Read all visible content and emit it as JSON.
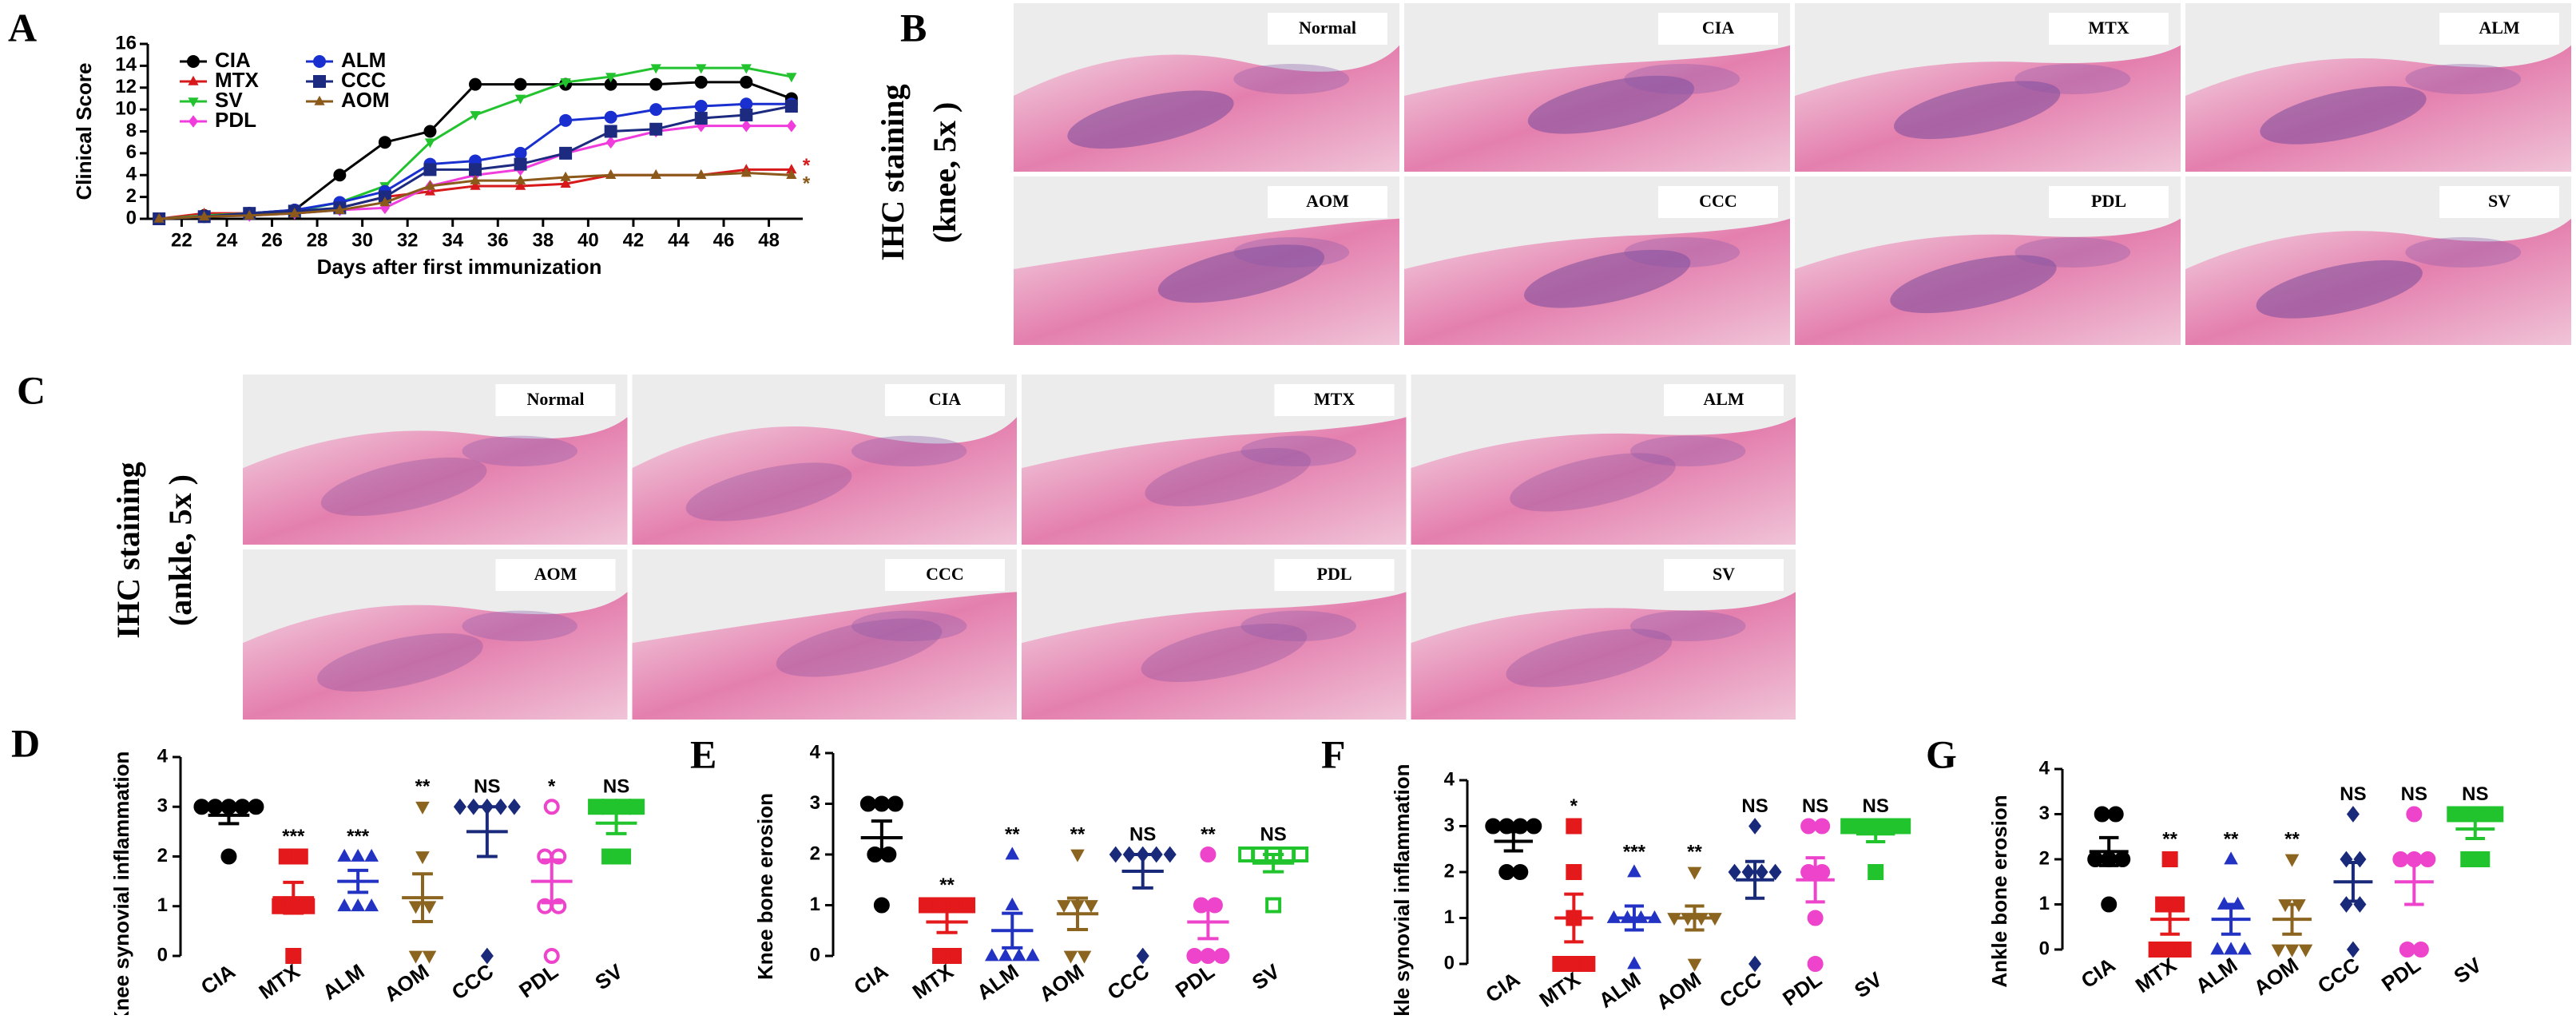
{
  "histology": [
    {
      "panel": "B",
      "title": "IHC staining",
      "subtitle": "(knee, 5x )",
      "images": [
        "Normal",
        "CIA",
        "MTX",
        "ALM",
        "AOM",
        "CCC",
        "PDL",
        "SV"
      ]
    },
    {
      "panel": "C",
      "title": "IHC staining",
      "subtitle": "(ankle, 5x )",
      "images": [
        "Normal",
        "CIA",
        "MTX",
        "ALM",
        "AOM",
        "CCC",
        "PDL",
        "SV"
      ]
    }
  ],
  "chart_data": [
    {
      "type": "line",
      "panel": "A",
      "y_label": "Clinical Score",
      "x_label": "Days after first immunization",
      "x": [
        21,
        23,
        25,
        27,
        29,
        31,
        33,
        35,
        37,
        39,
        41,
        43,
        45,
        47,
        49
      ],
      "xlim": [
        20.5,
        49.5
      ],
      "xticks": [
        22,
        24,
        26,
        28,
        30,
        32,
        34,
        36,
        38,
        40,
        42,
        44,
        46,
        48
      ],
      "ylim": [
        0,
        16
      ],
      "yticks": [
        0,
        2,
        4,
        6,
        8,
        10,
        12,
        14,
        16
      ],
      "series": [
        {
          "name": "CIA",
          "color": "#000000",
          "marker": "circle",
          "values": [
            0,
            0.3,
            0.5,
            0.8,
            4,
            7,
            8,
            12.3,
            12.3,
            12.3,
            12.3,
            12.3,
            12.5,
            12.5,
            11
          ]
        },
        {
          "name": "MTX",
          "color": "#d7191c",
          "marker": "triangle",
          "end_mark": "*",
          "values": [
            0,
            0.5,
            0.5,
            0.5,
            1,
            2,
            2.5,
            3,
            3,
            3.2,
            4,
            4,
            4,
            4.5,
            4.5
          ]
        },
        {
          "name": "SV",
          "color": "#22c32e",
          "marker": "triangle-down",
          "values": [
            0,
            0.3,
            0.5,
            0.7,
            1.5,
            3,
            7,
            9.5,
            11,
            12.5,
            13,
            13.8,
            13.8,
            13.8,
            13
          ]
        },
        {
          "name": "PDL",
          "color": "#f03cdc",
          "marker": "diamond",
          "values": [
            0,
            0.2,
            0.3,
            0.5,
            0.8,
            1,
            3,
            4,
            4.5,
            6,
            7,
            8,
            8.5,
            8.5,
            8.5
          ]
        },
        {
          "name": "ALM",
          "color": "#1a2fcf",
          "marker": "circle",
          "values": [
            0,
            0.2,
            0.5,
            0.8,
            1.5,
            2.5,
            5,
            5.3,
            6,
            9,
            9.3,
            10,
            10.3,
            10.5,
            10.5
          ]
        },
        {
          "name": "CCC",
          "color": "#1c2a80",
          "marker": "square",
          "values": [
            0,
            0.2,
            0.5,
            0.7,
            1,
            2,
            4.5,
            4.5,
            5,
            6,
            8,
            8.2,
            9.2,
            9.5,
            10.3
          ]
        },
        {
          "name": "AOM",
          "color": "#8b5a1a",
          "marker": "triangle",
          "end_mark": "*",
          "values": [
            0,
            0.2,
            0.3,
            0.5,
            0.8,
            1.5,
            3,
            3.5,
            3.5,
            3.8,
            4,
            4,
            4,
            4.2,
            4
          ]
        }
      ]
    },
    {
      "type": "dotplot",
      "panel": "D",
      "y_label": "Knee synovial inflammation",
      "categories": [
        "CIA",
        "MTX",
        "ALM",
        "AOM",
        "CCC",
        "PDL",
        "SV"
      ],
      "colors": [
        "#000000",
        "#e3191c",
        "#2233c4",
        "#8b6420",
        "#1a2a7a",
        "#ee44cc",
        "#22c42e"
      ],
      "markers": [
        "circle",
        "square",
        "triangle",
        "triangle-down",
        "diamond",
        "circle-open",
        "square"
      ],
      "points": [
        [
          3,
          3,
          3,
          3,
          3,
          2
        ],
        [
          2,
          2,
          1,
          1,
          1,
          0
        ],
        [
          2,
          2,
          2,
          1,
          1,
          1
        ],
        [
          3,
          2,
          1,
          1,
          0,
          0
        ],
        [
          3,
          3,
          3,
          3,
          3,
          0
        ],
        [
          3,
          2,
          2,
          1,
          1,
          0
        ],
        [
          3,
          3,
          3,
          3,
          2,
          2
        ]
      ],
      "means": [
        2.83,
        1.17,
        1.5,
        1.17,
        2.5,
        1.5,
        2.67
      ],
      "sems": [
        0.17,
        0.31,
        0.22,
        0.48,
        0.5,
        0.43,
        0.21
      ],
      "annotations": [
        null,
        "***",
        "***",
        "**",
        "NS",
        "*",
        "NS"
      ],
      "ylim": [
        0,
        4
      ],
      "yticks": [
        0,
        1,
        2,
        3,
        4
      ]
    },
    {
      "type": "dotplot",
      "panel": "E",
      "y_label": "Knee bone erosion",
      "categories": [
        "CIA",
        "MTX",
        "ALM",
        "AOM",
        "CCC",
        "PDL",
        "SV"
      ],
      "colors": [
        "#000000",
        "#e3191c",
        "#2233c4",
        "#8b6420",
        "#1a2a7a",
        "#ee44cc",
        "#22c42e"
      ],
      "markers": [
        "circle",
        "square",
        "triangle",
        "triangle-down",
        "diamond",
        "circle",
        "square-open"
      ],
      "points": [
        [
          3,
          3,
          3,
          2,
          2,
          1
        ],
        [
          1,
          1,
          1,
          1,
          0,
          0
        ],
        [
          2,
          1,
          0,
          0,
          0,
          0
        ],
        [
          2,
          1,
          1,
          1,
          0,
          0
        ],
        [
          2,
          2,
          2,
          2,
          2,
          0
        ],
        [
          2,
          1,
          1,
          0,
          0,
          0
        ],
        [
          2,
          2,
          2,
          2,
          2,
          1
        ]
      ],
      "means": [
        2.33,
        0.67,
        0.5,
        0.83,
        1.67,
        0.67,
        1.83
      ],
      "sems": [
        0.33,
        0.21,
        0.34,
        0.31,
        0.33,
        0.33,
        0.17
      ],
      "annotations": [
        null,
        "**",
        "**",
        "**",
        "NS",
        "**",
        "NS"
      ],
      "ylim": [
        0,
        4
      ],
      "yticks": [
        0,
        1,
        2,
        3,
        4
      ]
    },
    {
      "type": "dotplot",
      "panel": "F",
      "y_label": "Ankle synovial inflammation",
      "categories": [
        "CIA",
        "MTX",
        "ALM",
        "AOM",
        "CCC",
        "PDL",
        "SV"
      ],
      "colors": [
        "#000000",
        "#e3191c",
        "#2233c4",
        "#8b6420",
        "#1a2a7a",
        "#ee44cc",
        "#22c42e"
      ],
      "markers": [
        "circle",
        "square",
        "triangle",
        "triangle-down",
        "diamond",
        "circle",
        "square"
      ],
      "points": [
        [
          3,
          3,
          3,
          3,
          2,
          2
        ],
        [
          3,
          2,
          1,
          0,
          0,
          0
        ],
        [
          2,
          1,
          1,
          1,
          1,
          0
        ],
        [
          2,
          1,
          1,
          1,
          1,
          0
        ],
        [
          3,
          2,
          2,
          2,
          2,
          0
        ],
        [
          3,
          3,
          2,
          2,
          1,
          0
        ],
        [
          3,
          3,
          3,
          3,
          3,
          2
        ]
      ],
      "means": [
        2.67,
        1,
        1,
        1,
        1.83,
        1.83,
        2.83
      ],
      "sems": [
        0.21,
        0.52,
        0.26,
        0.26,
        0.4,
        0.48,
        0.17
      ],
      "annotations": [
        null,
        "*",
        "***",
        "**",
        "NS",
        "NS",
        "NS"
      ],
      "ylim": [
        0,
        4
      ],
      "yticks": [
        0,
        1,
        2,
        3,
        4
      ]
    },
    {
      "type": "dotplot",
      "panel": "G",
      "y_label": "Ankle bone erosion",
      "categories": [
        "CIA",
        "MTX",
        "ALM",
        "AOM",
        "CCC",
        "PDL",
        "SV"
      ],
      "colors": [
        "#000000",
        "#e3191c",
        "#2233c4",
        "#8b6420",
        "#1a2a7a",
        "#ee44cc",
        "#22c42e"
      ],
      "markers": [
        "circle",
        "square",
        "triangle",
        "triangle-down",
        "diamond",
        "circle",
        "square"
      ],
      "points": [
        [
          3,
          3,
          2,
          2,
          2,
          1
        ],
        [
          2,
          1,
          1,
          0,
          0,
          0
        ],
        [
          2,
          1,
          1,
          0,
          0,
          0
        ],
        [
          2,
          1,
          1,
          0,
          0,
          0
        ],
        [
          3,
          2,
          2,
          1,
          1,
          0
        ],
        [
          3,
          2,
          2,
          2,
          0,
          0
        ],
        [
          3,
          3,
          3,
          3,
          2,
          2
        ]
      ],
      "means": [
        2.17,
        0.67,
        0.67,
        0.67,
        1.5,
        1.5,
        2.67
      ],
      "sems": [
        0.31,
        0.33,
        0.33,
        0.33,
        0.43,
        0.5,
        0.21
      ],
      "annotations": [
        null,
        "**",
        "**",
        "**",
        "NS",
        "NS",
        "NS"
      ],
      "ylim": [
        0,
        4
      ],
      "yticks": [
        0,
        1,
        2,
        3,
        4
      ]
    }
  ]
}
